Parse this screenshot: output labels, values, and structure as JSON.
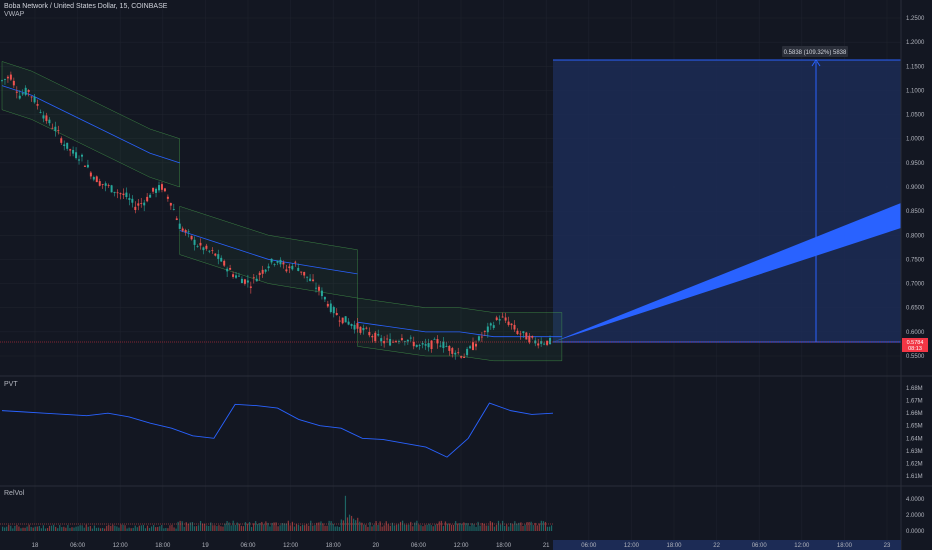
{
  "header": {
    "symbol_line": "Boba Network / United States Dollar, 15, COINBASE",
    "indicator": "VWAP"
  },
  "panes": {
    "pvt_label": "PVT",
    "relvol_label": "RelVol"
  },
  "measure": {
    "label": "0.5838 (109.32%) 5838",
    "start_price": 0.5784,
    "end_price": 1.1622
  },
  "current_price": {
    "price": "0.5784",
    "countdown": "08:13"
  },
  "colors": {
    "background": "#131722",
    "up": "#26a69a",
    "down": "#ef5350",
    "measure_fill": "#1c2b55",
    "measure_line": "#2962ff",
    "projection": "#2962ff",
    "vwap": "#2962ff",
    "vwap_band": "#4caf50",
    "pvt_line": "#2962ff",
    "price_line": "#f23645"
  },
  "chart_data": [
    {
      "type": "line",
      "name": "price",
      "y_axis_ticks": [
        "1.2500",
        "1.2000",
        "1.1500",
        "1.1000",
        "1.0500",
        "1.0000",
        "0.9500",
        "0.9000",
        "0.8500",
        "0.8000",
        "0.7500",
        "0.7000",
        "0.6500",
        "0.6000",
        "0.5500"
      ],
      "x_axis_ticks": [
        "18",
        "06:00",
        "12:00",
        "18:00",
        "19",
        "06:00",
        "12:00",
        "18:00",
        "20",
        "06:00",
        "12:00",
        "18:00",
        "21",
        "06:00",
        "12:00",
        "18:00",
        "22",
        "06:00",
        "12:00",
        "18:00",
        "23"
      ],
      "close_path": [
        1.12,
        1.13,
        1.09,
        1.1,
        1.07,
        1.04,
        1.02,
        0.99,
        0.97,
        0.96,
        0.93,
        0.91,
        0.9,
        0.89,
        0.88,
        0.86,
        0.87,
        0.89,
        0.9,
        0.87,
        0.82,
        0.8,
        0.78,
        0.77,
        0.76,
        0.74,
        0.72,
        0.71,
        0.7,
        0.72,
        0.74,
        0.75,
        0.73,
        0.74,
        0.72,
        0.7,
        0.68,
        0.65,
        0.63,
        0.62,
        0.61,
        0.6,
        0.59,
        0.58,
        0.58,
        0.59,
        0.58,
        0.57,
        0.57,
        0.58,
        0.57,
        0.56,
        0.55,
        0.57,
        0.59,
        0.61,
        0.63,
        0.62,
        0.6,
        0.59,
        0.58,
        0.58,
        0.5784
      ],
      "vwap_segments": [
        {
          "start": 0,
          "end": 20,
          "mid": [
            1.11,
            1.09,
            1.06,
            1.03,
            1.0,
            0.97,
            0.95
          ]
        },
        {
          "start": 20,
          "end": 40,
          "mid": [
            0.81,
            0.79,
            0.77,
            0.75,
            0.74,
            0.73,
            0.72
          ]
        },
        {
          "start": 40,
          "end": 63,
          "mid": [
            0.62,
            0.61,
            0.6,
            0.6,
            0.59,
            0.59,
            0.59
          ]
        }
      ]
    },
    {
      "type": "line",
      "name": "PVT",
      "y_axis_ticks": [
        "1.68M",
        "1.67M",
        "1.66M",
        "1.65M",
        "1.64M",
        "1.63M",
        "1.62M",
        "1.61M"
      ],
      "values": [
        1.662,
        1.661,
        1.66,
        1.659,
        1.658,
        1.66,
        1.657,
        1.652,
        1.648,
        1.642,
        1.64,
        1.667,
        1.666,
        1.664,
        1.655,
        1.65,
        1.648,
        1.64,
        1.639,
        1.636,
        1.633,
        1.625,
        1.64,
        1.668,
        1.662,
        1.659,
        1.66
      ]
    },
    {
      "type": "bar",
      "name": "RelVol",
      "y_axis_ticks": [
        "4.0000",
        "2.0000",
        "0.0000"
      ]
    }
  ]
}
